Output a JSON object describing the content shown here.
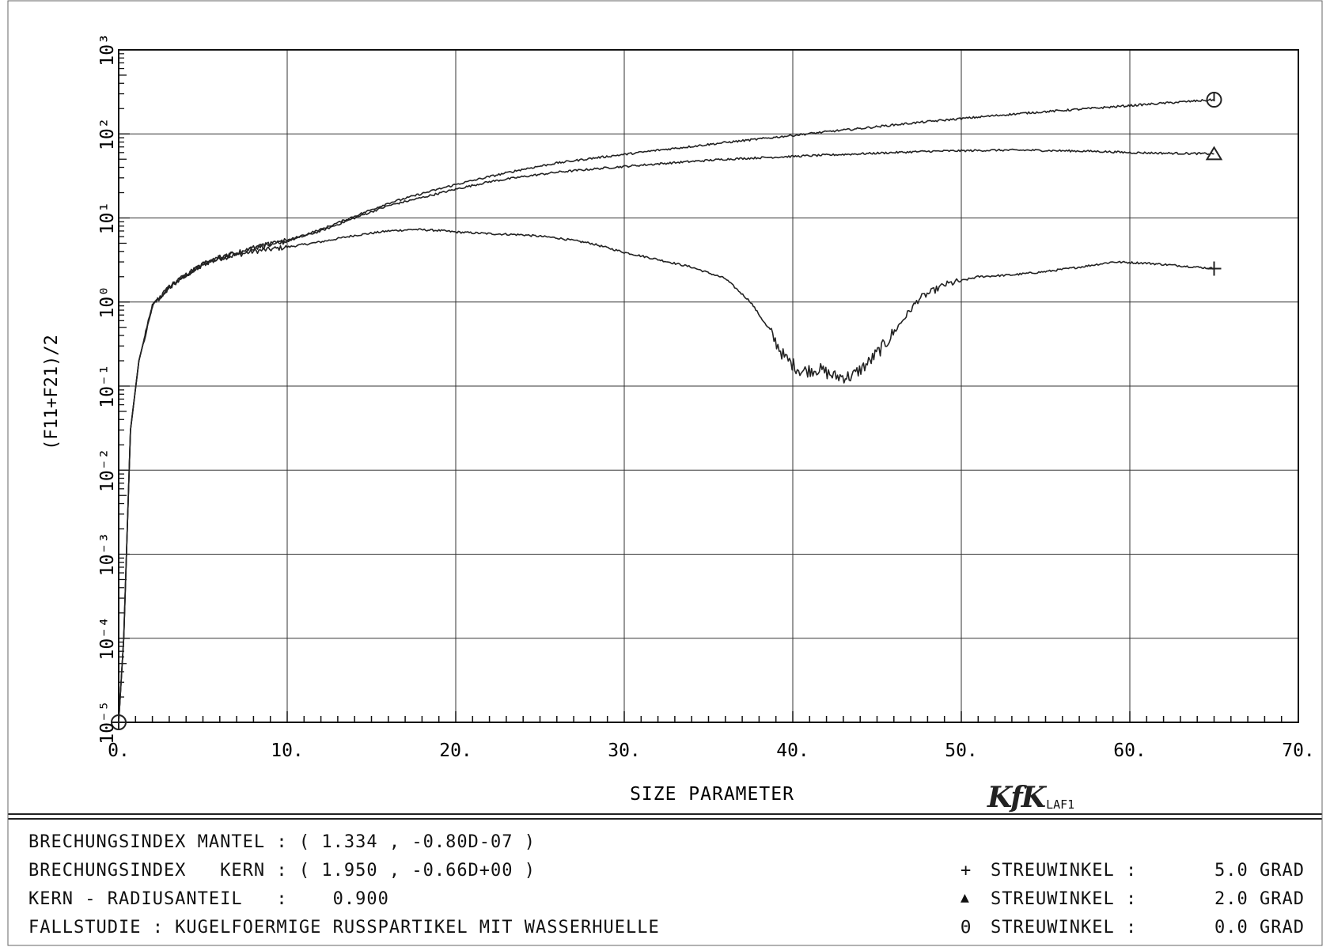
{
  "chart_data": {
    "type": "line",
    "xlabel": "SIZE PARAMETER",
    "ylabel": "(F11+F21)/2",
    "xlim": [
      0,
      70
    ],
    "ylim_log10": [
      -5,
      3
    ],
    "y_scale": "log",
    "x_ticks": [
      0,
      10,
      20,
      30,
      40,
      50,
      60,
      70
    ],
    "x_tick_labels": [
      "0.",
      "10.",
      "20.",
      "30.",
      "40.",
      "50.",
      "60.",
      "70."
    ],
    "y_ticks_exp": [
      -5,
      -4,
      -3,
      -2,
      -1,
      0,
      1,
      2,
      3
    ],
    "y_tick_labels": [
      "10⁻⁵",
      "10⁻⁴",
      "10⁻³",
      "10⁻²",
      "10⁻¹",
      "10⁰",
      "10¹",
      "10²",
      "10³"
    ],
    "grid": true,
    "series": [
      {
        "marker": "+",
        "x": [
          0,
          0.3,
          0.7,
          1.2,
          2,
          3,
          4,
          5,
          6,
          8,
          10,
          12,
          14,
          16,
          17.5,
          19,
          20,
          22,
          24,
          26,
          28,
          30,
          32,
          34,
          36,
          37.5,
          38.5,
          39.5,
          40.5,
          41.5,
          42.5,
          43.5,
          44.5,
          45.5,
          46.5,
          47.5,
          49,
          51,
          53,
          55,
          57,
          59,
          61,
          63,
          65
        ],
        "y": [
          1e-05,
          0.0001,
          0.03,
          0.2,
          0.9,
          1.5,
          2.1,
          2.8,
          3.3,
          4.0,
          4.5,
          5.2,
          6.2,
          7.0,
          7.3,
          7.1,
          6.8,
          6.5,
          6.3,
          5.8,
          5.0,
          3.9,
          3.2,
          2.6,
          1.9,
          1.0,
          0.5,
          0.22,
          0.15,
          0.16,
          0.13,
          0.13,
          0.19,
          0.32,
          0.6,
          1.1,
          1.6,
          2.0,
          2.1,
          2.3,
          2.6,
          3.0,
          2.9,
          2.7,
          2.5
        ]
      },
      {
        "marker": "triangle",
        "x": [
          0,
          0.3,
          0.7,
          1.2,
          2,
          3,
          4,
          5,
          6,
          8,
          10,
          12,
          14,
          16,
          18,
          20,
          22,
          24,
          26,
          28,
          30,
          32,
          34,
          36,
          38,
          40,
          42,
          44,
          46,
          48,
          50,
          52,
          54,
          56,
          58,
          60,
          62,
          65
        ],
        "y": [
          1e-05,
          0.0001,
          0.03,
          0.2,
          0.9,
          1.5,
          2.1,
          2.8,
          3.4,
          4.4,
          5.3,
          7.0,
          10.0,
          14.0,
          17.5,
          22.0,
          27.0,
          31.0,
          35.0,
          38.0,
          41.0,
          44.0,
          47.0,
          50.0,
          52.0,
          54.0,
          56.0,
          58.0,
          60.0,
          62.0,
          63.0,
          64.0,
          64.0,
          63.0,
          62.0,
          60.0,
          59.0,
          58.0
        ]
      },
      {
        "marker": "circle",
        "x": [
          0,
          0.3,
          0.7,
          1.2,
          2,
          3,
          4,
          5,
          6,
          8,
          10,
          12,
          14,
          16,
          18,
          20,
          22,
          24,
          26,
          28,
          30,
          32,
          34,
          36,
          38,
          40,
          42,
          44,
          46,
          48,
          50,
          52,
          54,
          56,
          58,
          60,
          62,
          65
        ],
        "y": [
          1e-05,
          0.0001,
          0.03,
          0.2,
          0.9,
          1.5,
          2.1,
          2.8,
          3.4,
          4.4,
          5.4,
          7.3,
          10.5,
          15.0,
          19.5,
          25.0,
          31.0,
          38.0,
          45.0,
          51.0,
          57.0,
          64.0,
          71.0,
          79.0,
          87.0,
          96.0,
          106.0,
          116.0,
          128.0,
          140.0,
          152.0,
          165.0,
          178.0,
          190.0,
          203.0,
          217.0,
          232.0,
          255.0
        ]
      }
    ]
  },
  "footer": {
    "line1": "BRECHUNGSINDEX MANTEL : ( 1.334 , -0.80D-07 )",
    "line2": "BRECHUNGSINDEX   KERN : ( 1.950 , -0.66D+00 )",
    "line3": "KERN - RADIUSANTEIL   :    0.900",
    "line4": "FALLSTUDIE : KUGELFOERMIGE RUSSPARTIKEL MIT WASSERHUELLE"
  },
  "legend": [
    {
      "symbol": "+",
      "label": "STREUWINKEL :",
      "value": "5.0 GRAD"
    },
    {
      "symbol": "▲",
      "label": "STREUWINKEL :",
      "value": "2.0 GRAD"
    },
    {
      "symbol": "Θ",
      "label": "STREUWINKEL :",
      "value": "0.0 GRAD"
    }
  ],
  "logo": {
    "mark": "KfK",
    "sub": "LAF1"
  }
}
